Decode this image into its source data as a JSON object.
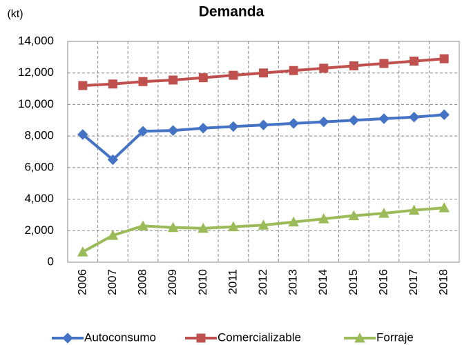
{
  "chart_data": {
    "type": "line",
    "title": "Demanda",
    "y_label": "(kt)",
    "categories": [
      "2006",
      "2007",
      "2008",
      "2009",
      "2010",
      "2011",
      "2012",
      "2013",
      "2014",
      "2015",
      "2016",
      "2017",
      "2018"
    ],
    "series": [
      {
        "name": "Autoconsumo",
        "color": "#4472c4",
        "marker": "diamond",
        "values": [
          8100,
          6500,
          8300,
          8350,
          8500,
          8600,
          8700,
          8800,
          8900,
          9000,
          9100,
          9200,
          9350
        ]
      },
      {
        "name": "Comercializable",
        "color": "#c0504d",
        "marker": "square",
        "values": [
          11200,
          11300,
          11450,
          11550,
          11700,
          11850,
          12000,
          12150,
          12300,
          12450,
          12600,
          12750,
          12900
        ]
      },
      {
        "name": "Forraje",
        "color": "#9bbb59",
        "marker": "triangle",
        "values": [
          650,
          1700,
          2300,
          2200,
          2150,
          2250,
          2350,
          2550,
          2750,
          2950,
          3100,
          3300,
          3450
        ]
      }
    ],
    "ylim": [
      0,
      14000
    ],
    "yticks": [
      0,
      {
        "value": 2000,
        "label": "2,000"
      },
      {
        "value": 4000,
        "label": "4,000"
      },
      {
        "value": 6000,
        "label": "6,000"
      },
      {
        "value": 8000,
        "label": "8,000"
      },
      {
        "value": 10000,
        "label": "10,000"
      },
      {
        "value": 12000,
        "label": "12,000"
      },
      {
        "value": 14000,
        "label": "14,000"
      }
    ],
    "grid": true,
    "legend": "bottom"
  }
}
